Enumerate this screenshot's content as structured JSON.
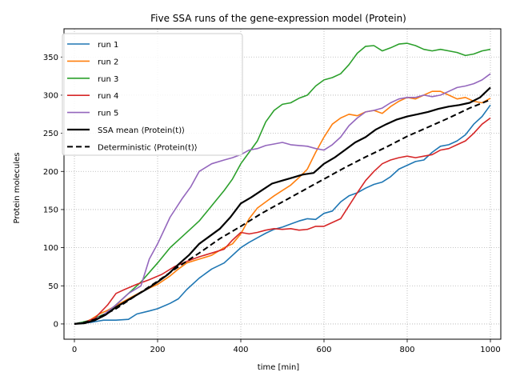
{
  "chart_data": {
    "type": "line",
    "title": "Five SSA runs of the gene-expression model (Protein)",
    "xlabel": "time [min]",
    "ylabel": "Protein molecules",
    "xlim": [
      -25,
      1025
    ],
    "ylim": [
      -20,
      387
    ],
    "xticks": [
      0,
      200,
      400,
      600,
      800,
      1000
    ],
    "yticks": [
      0,
      50,
      100,
      150,
      200,
      250,
      300,
      350
    ],
    "grid": true,
    "legend_position": "top-left",
    "series": [
      {
        "name": "run 1",
        "color": "#1f77b4",
        "style": "solid",
        "width": 1.6,
        "x": [
          0,
          40,
          70,
          100,
          130,
          150,
          180,
          200,
          230,
          250,
          270,
          300,
          330,
          360,
          400,
          420,
          440,
          460,
          480,
          500,
          520,
          540,
          560,
          580,
          600,
          620,
          640,
          660,
          680,
          700,
          720,
          740,
          760,
          780,
          800,
          820,
          840,
          860,
          880,
          900,
          920,
          940,
          960,
          980,
          1000
        ],
        "y": [
          0,
          2,
          5,
          5,
          6,
          13,
          17,
          20,
          27,
          33,
          45,
          60,
          72,
          80,
          100,
          107,
          113,
          119,
          124,
          127,
          131,
          135,
          138,
          137,
          145,
          148,
          160,
          168,
          172,
          178,
          183,
          186,
          193,
          203,
          208,
          213,
          215,
          225,
          233,
          235,
          240,
          248,
          262,
          272,
          287
        ]
      },
      {
        "name": "run 2",
        "color": "#ff7f0e",
        "style": "solid",
        "width": 1.6,
        "x": [
          0,
          20,
          40,
          60,
          80,
          100,
          130,
          160,
          200,
          230,
          250,
          270,
          300,
          330,
          360,
          380,
          400,
          420,
          440,
          460,
          480,
          500,
          520,
          540,
          560,
          580,
          600,
          620,
          640,
          660,
          680,
          700,
          720,
          740,
          760,
          780,
          800,
          820,
          840,
          860,
          880,
          900,
          920,
          940,
          960,
          980,
          1000
        ],
        "y": [
          0,
          1,
          6,
          13,
          18,
          24,
          33,
          42,
          52,
          63,
          72,
          80,
          85,
          90,
          100,
          105,
          118,
          138,
          152,
          160,
          168,
          175,
          182,
          192,
          203,
          225,
          245,
          262,
          270,
          275,
          273,
          278,
          280,
          276,
          285,
          292,
          297,
          295,
          300,
          305,
          305,
          300,
          295,
          297,
          292,
          290,
          296
        ]
      },
      {
        "name": "run 3",
        "color": "#2ca02c",
        "style": "solid",
        "width": 1.6,
        "x": [
          0,
          40,
          80,
          100,
          130,
          160,
          200,
          230,
          260,
          280,
          300,
          330,
          360,
          380,
          400,
          420,
          440,
          460,
          480,
          500,
          520,
          540,
          560,
          580,
          600,
          620,
          640,
          660,
          680,
          700,
          720,
          740,
          760,
          780,
          800,
          820,
          840,
          860,
          880,
          900,
          920,
          940,
          960,
          980,
          1000
        ],
        "y": [
          0,
          5,
          15,
          25,
          40,
          55,
          80,
          100,
          115,
          125,
          135,
          155,
          175,
          190,
          210,
          225,
          240,
          265,
          280,
          288,
          290,
          296,
          300,
          312,
          320,
          323,
          328,
          340,
          355,
          364,
          365,
          358,
          362,
          367,
          368,
          365,
          360,
          358,
          360,
          358,
          356,
          352,
          354,
          358,
          360
        ]
      },
      {
        "name": "run 4",
        "color": "#d62728",
        "style": "solid",
        "width": 1.6,
        "x": [
          0,
          20,
          50,
          80,
          100,
          120,
          150,
          180,
          210,
          240,
          270,
          300,
          330,
          360,
          380,
          400,
          420,
          440,
          460,
          480,
          500,
          520,
          540,
          560,
          580,
          600,
          620,
          640,
          660,
          680,
          700,
          720,
          740,
          760,
          780,
          800,
          820,
          840,
          860,
          880,
          900,
          920,
          940,
          960,
          980,
          1000
        ],
        "y": [
          0,
          1,
          8,
          25,
          40,
          45,
          52,
          58,
          65,
          75,
          82,
          88,
          93,
          98,
          110,
          120,
          118,
          120,
          123,
          125,
          124,
          125,
          123,
          124,
          128,
          128,
          133,
          138,
          155,
          172,
          188,
          200,
          210,
          215,
          218,
          220,
          218,
          220,
          222,
          228,
          230,
          235,
          240,
          250,
          262,
          270
        ]
      },
      {
        "name": "run 5",
        "color": "#9467bd",
        "style": "solid",
        "width": 1.6,
        "x": [
          0,
          40,
          70,
          100,
          130,
          160,
          180,
          200,
          230,
          260,
          280,
          300,
          330,
          360,
          380,
          400,
          420,
          440,
          460,
          480,
          500,
          520,
          540,
          560,
          580,
          600,
          620,
          640,
          660,
          680,
          700,
          720,
          740,
          760,
          780,
          800,
          820,
          840,
          860,
          880,
          900,
          920,
          940,
          960,
          980,
          1000
        ],
        "y": [
          0,
          3,
          12,
          25,
          40,
          50,
          85,
          105,
          140,
          165,
          180,
          200,
          210,
          215,
          218,
          222,
          228,
          230,
          234,
          236,
          238,
          235,
          234,
          233,
          230,
          228,
          235,
          245,
          260,
          270,
          278,
          280,
          283,
          290,
          295,
          297,
          297,
          300,
          298,
          300,
          305,
          310,
          312,
          315,
          320,
          328
        ]
      },
      {
        "name": "SSA mean ⟨Protein(t)⟩",
        "color": "#000000",
        "style": "solid",
        "width": 2.2,
        "x": [
          0,
          25,
          50,
          75,
          100,
          125,
          150,
          175,
          200,
          225,
          250,
          275,
          300,
          325,
          350,
          375,
          400,
          425,
          450,
          475,
          500,
          525,
          550,
          575,
          600,
          625,
          650,
          675,
          700,
          725,
          750,
          775,
          800,
          825,
          850,
          875,
          900,
          925,
          950,
          975,
          1000
        ],
        "y": [
          0,
          1,
          5,
          12,
          22,
          30,
          38,
          46,
          55,
          65,
          78,
          90,
          105,
          115,
          125,
          140,
          158,
          166,
          175,
          184,
          188,
          192,
          196,
          198,
          210,
          218,
          228,
          238,
          245,
          255,
          262,
          268,
          272,
          275,
          278,
          282,
          285,
          287,
          290,
          297,
          310
        ]
      },
      {
        "name": "Deterministic ⟨Protein(t)⟩",
        "color": "#000000",
        "style": "dashed",
        "width": 2.0,
        "x": [
          0,
          25,
          50,
          75,
          100,
          125,
          150,
          175,
          200,
          250,
          300,
          350,
          400,
          450,
          500,
          550,
          600,
          650,
          700,
          750,
          800,
          850,
          900,
          950,
          1000
        ],
        "y": [
          0,
          2,
          6,
          13,
          20,
          29,
          38,
          47,
          56,
          75,
          93,
          112,
          128,
          145,
          160,
          175,
          190,
          205,
          219,
          232,
          246,
          258,
          270,
          283,
          294
        ]
      }
    ]
  }
}
